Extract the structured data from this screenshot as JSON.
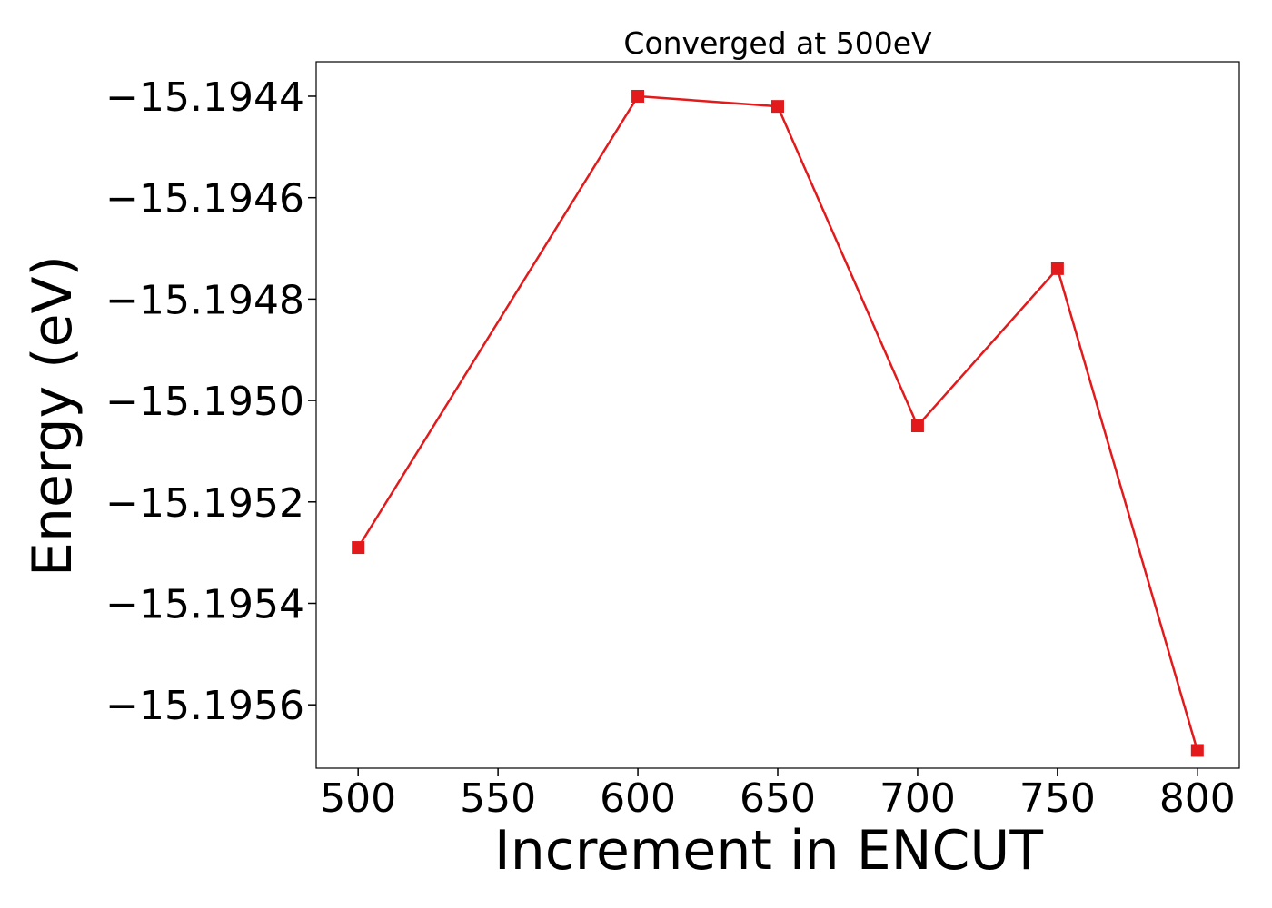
{
  "chart_data": {
    "type": "line",
    "title": "Converged at 500eV",
    "xlabel": "Increment in ENCUT",
    "ylabel": "Energy (eV)",
    "x": [
      500,
      600,
      650,
      700,
      750,
      800
    ],
    "series": [
      {
        "values": [
          -15.19529,
          -15.1944,
          -15.19442,
          -15.19505,
          -15.19474,
          -15.19569
        ],
        "color": "#e31a1c",
        "marker": "square"
      }
    ],
    "xticks": [
      500,
      550,
      600,
      650,
      700,
      750,
      800
    ],
    "xtick_labels": [
      "500",
      "550",
      "600",
      "650",
      "700",
      "750",
      "800"
    ],
    "yticks": [
      -15.1944,
      -15.1946,
      -15.1948,
      -15.195,
      -15.1952,
      -15.1954,
      -15.1956
    ],
    "ytick_labels": [
      "−15.1944",
      "−15.1946",
      "−15.1948",
      "−15.1950",
      "−15.1952",
      "−15.1954",
      "−15.1956"
    ],
    "xlim": [
      485,
      815
    ],
    "ylim": [
      -15.195725,
      -15.194332
    ],
    "grid": false,
    "legend": "none"
  }
}
